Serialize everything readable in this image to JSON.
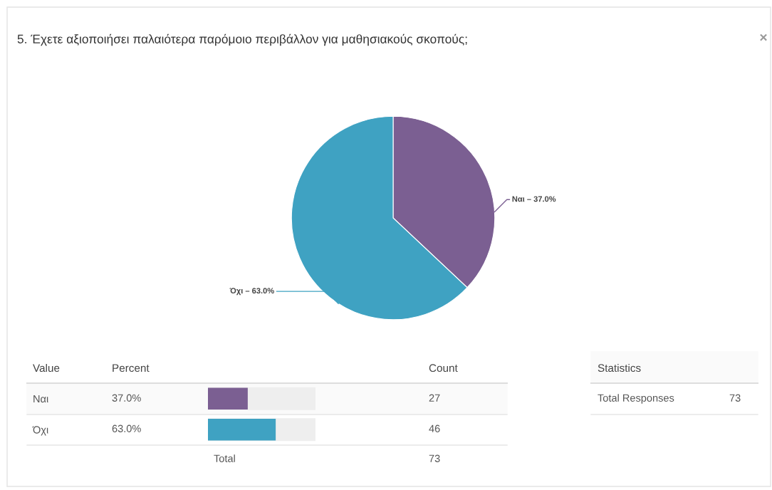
{
  "chart_data": [
    {
      "type": "pie",
      "title": "5. Έχετε αξιοποιήσει παλαιότερα παρόμοιο περιβάλλον για μαθησιακούς σκοπούς;",
      "categories": [
        "Ναι – 37.0%",
        "Όχι – 63.0%"
      ],
      "values": [
        37.0,
        63.0
      ],
      "colors": [
        "#7b5f92",
        "#3fa2c2"
      ],
      "annotations": [
        "×"
      ]
    },
    {
      "type": "bar",
      "orientation": "horizontal",
      "categories": [
        "Ναι",
        "Όχι"
      ],
      "values": [
        37.0,
        63.0
      ],
      "colors": [
        "#7b5f92",
        "#3fa2c2"
      ],
      "value_labels": [
        "37.0%",
        "63.0%"
      ],
      "xlim": [
        0,
        100
      ],
      "annotations": [
        "Value",
        "Percent",
        "Count",
        "27",
        "46",
        "Total",
        "73"
      ]
    },
    {
      "type": "other",
      "annotations": [
        "Statistics",
        "Total Responses",
        "73"
      ]
    }
  ]
}
